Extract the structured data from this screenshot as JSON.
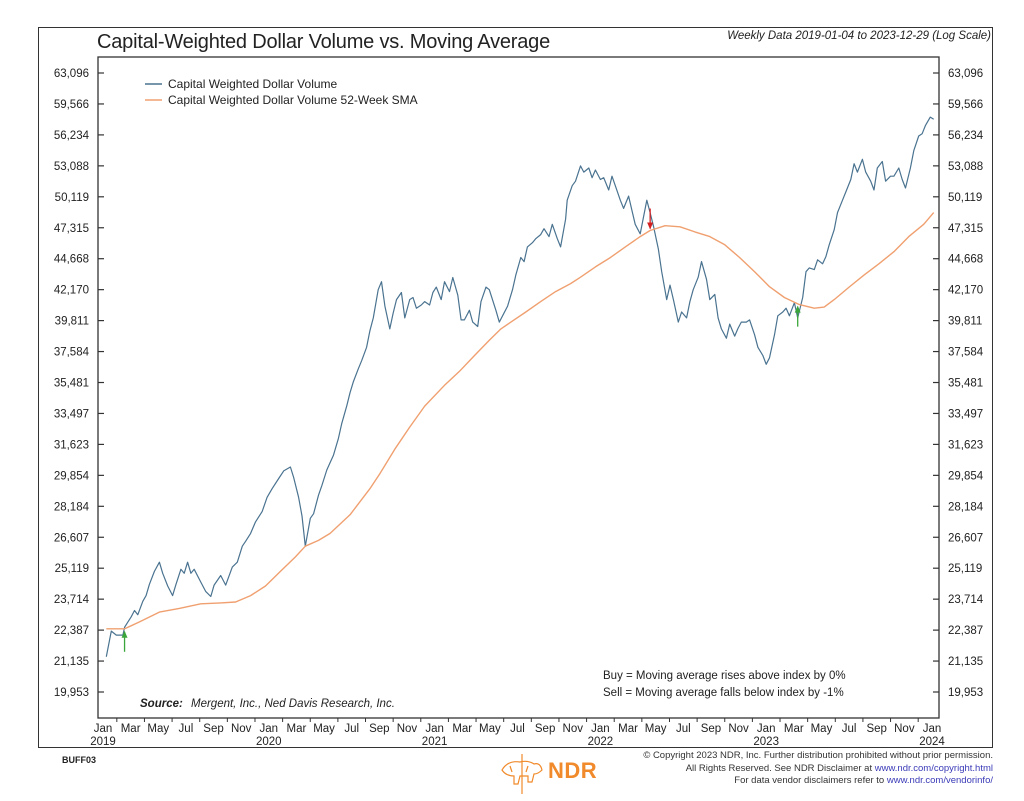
{
  "header": {
    "title": "Capital-Weighted Dollar Volume vs. Moving Average",
    "subtitle": "Weekly Data 2019-01-04 to 2023-12-29 (Log Scale)"
  },
  "footer": {
    "code": "BUFF03",
    "logo_text": "NDR",
    "copyright_line1": "© Copyright 2023 NDR, Inc. Further distribution prohibited without prior permission.",
    "copyright_line2_prefix": "All Rights Reserved. See NDR Disclaimer at ",
    "copyright_line2_link": "www.ndr.com/copyright.html",
    "copyright_line3_prefix": "For data vendor disclaimers refer to ",
    "copyright_line3_link": "www.ndr.com/vendorinfo/"
  },
  "colors": {
    "series_main": "#4a7390",
    "series_sma": "#f0a070",
    "buy_arrow": "#3aa53a",
    "sell_arrow": "#d42020",
    "logo": "#f08a2a"
  },
  "chart_data": {
    "type": "line",
    "title": "Capital-Weighted Dollar Volume vs. Moving Average",
    "subtitle": "Weekly Data 2019-01-04 to 2023-12-29 (Log Scale)",
    "y_scale": "log",
    "ylim": [
      19000,
      65500
    ],
    "xlim": [
      2018.98,
      2024.04
    ],
    "y_ticks": [
      63096,
      59566,
      56234,
      53088,
      50119,
      47315,
      44668,
      42170,
      39811,
      37584,
      35481,
      33497,
      31623,
      29854,
      28184,
      26607,
      25119,
      23714,
      22387,
      21135,
      19953
    ],
    "y_tick_labels": [
      "63,096",
      "59,566",
      "56,234",
      "53,088",
      "50,119",
      "47,315",
      "44,668",
      "42,170",
      "39,811",
      "37,584",
      "35,481",
      "33,497",
      "31,623",
      "29,854",
      "28,184",
      "26,607",
      "25,119",
      "23,714",
      "22,387",
      "21,135",
      "19,953"
    ],
    "x_month_labels": [
      "Jan",
      "Mar",
      "May",
      "Jul",
      "Sep",
      "Nov",
      "Jan",
      "Mar",
      "May",
      "Jul",
      "Sep",
      "Nov",
      "Jan",
      "Mar",
      "May",
      "Jul",
      "Sep",
      "Nov",
      "Jan",
      "Mar",
      "May",
      "Jul",
      "Sep",
      "Nov",
      "Jan",
      "Mar",
      "May",
      "Jul",
      "Sep",
      "Nov",
      "Jan"
    ],
    "x_year_labels": [
      {
        "label": "2019",
        "x": 2019.0
      },
      {
        "label": "2020",
        "x": 2020.0
      },
      {
        "label": "2021",
        "x": 2021.0
      },
      {
        "label": "2022",
        "x": 2022.0
      },
      {
        "label": "2023",
        "x": 2023.0
      },
      {
        "label": "2024",
        "x": 2024.0
      }
    ],
    "grid": false,
    "legend": {
      "position": "top-left",
      "entries": [
        {
          "name": "Capital Weighted Dollar Volume",
          "color": "#4a7390"
        },
        {
          "name": "Capital Weighted Dollar Volume 52-Week SMA",
          "color": "#f0a070"
        }
      ]
    },
    "source_label": "Source:",
    "source_text": "Mergent, Inc., Ned Davis Research, Inc.",
    "signal_rules": [
      "Buy = Moving average rises above index by 0%",
      "Sell = Moving average falls below index by -1%"
    ],
    "signals": [
      {
        "type": "buy",
        "x": 2019.13,
        "y": 22400
      },
      {
        "type": "sell",
        "x": 2022.3,
        "y": 47070
      },
      {
        "type": "buy",
        "x": 2023.19,
        "y": 41010
      }
    ],
    "series": [
      {
        "name": "Capital Weighted Dollar Volume",
        "x": [
          2019.02,
          2019.05,
          2019.08,
          2019.12,
          2019.13,
          2019.17,
          2019.19,
          2019.21,
          2019.24,
          2019.26,
          2019.28,
          2019.31,
          2019.34,
          2019.36,
          2019.39,
          2019.42,
          2019.44,
          2019.47,
          2019.49,
          2019.51,
          2019.53,
          2019.55,
          2019.59,
          2019.62,
          2019.65,
          2019.67,
          2019.71,
          2019.74,
          2019.78,
          2019.81,
          2019.84,
          2019.86,
          2019.89,
          2019.92,
          2019.96,
          2019.99,
          2020.02,
          2020.06,
          2020.09,
          2020.13,
          2020.15,
          2020.18,
          2020.2,
          2020.22,
          2020.25,
          2020.27,
          2020.3,
          2020.32,
          2020.35,
          2020.37,
          2020.39,
          2020.42,
          2020.44,
          2020.47,
          2020.49,
          2020.51,
          2020.54,
          2020.56,
          2020.59,
          2020.61,
          2020.63,
          2020.66,
          2020.68,
          2020.7,
          2020.73,
          2020.75,
          2020.77,
          2020.8,
          2020.82,
          2020.85,
          2020.87,
          2020.89,
          2020.92,
          2020.94,
          2020.97,
          2020.99,
          2021.01,
          2021.04,
          2021.06,
          2021.09,
          2021.11,
          2021.14,
          2021.16,
          2021.18,
          2021.21,
          2021.23,
          2021.26,
          2021.28,
          2021.31,
          2021.33,
          2021.37,
          2021.39,
          2021.42,
          2021.44,
          2021.47,
          2021.49,
          2021.52,
          2021.54,
          2021.56,
          2021.59,
          2021.61,
          2021.64,
          2021.66,
          2021.69,
          2021.71,
          2021.74,
          2021.76,
          2021.79,
          2021.8,
          2021.83,
          2021.85,
          2021.88,
          2021.9,
          2021.93,
          2021.95,
          2021.97,
          2022.0,
          2022.02,
          2022.05,
          2022.07,
          2022.09,
          2022.12,
          2022.14,
          2022.17,
          2022.19,
          2022.21,
          2022.24,
          2022.28,
          2022.3,
          2022.32,
          2022.35,
          2022.37,
          2022.4,
          2022.42,
          2022.44,
          2022.47,
          2022.49,
          2022.52,
          2022.54,
          2022.56,
          2022.59,
          2022.61,
          2022.64,
          2022.66,
          2022.69,
          2022.71,
          2022.73,
          2022.76,
          2022.78,
          2022.81,
          2022.83,
          2022.85,
          2022.88,
          2022.9,
          2022.93,
          2022.95,
          2022.98,
          2023.0,
          2023.02,
          2023.05,
          2023.07,
          2023.1,
          2023.12,
          2023.14,
          2023.17,
          2023.19,
          2023.22,
          2023.24,
          2023.26,
          2023.29,
          2023.31,
          2023.34,
          2023.36,
          2023.38,
          2023.41,
          2023.43,
          2023.46,
          2023.48,
          2023.51,
          2023.53,
          2023.55,
          2023.58,
          2023.6,
          2023.63,
          2023.65,
          2023.67,
          2023.7,
          2023.72,
          2023.75,
          2023.77,
          2023.8,
          2023.82,
          2023.84,
          2023.87,
          2023.89,
          2023.92,
          2023.94,
          2023.96,
          2023.99,
          2024.01
        ],
        "values": [
          21302,
          22345,
          22180,
          22180,
          22510,
          22950,
          23220,
          23040,
          23620,
          23870,
          24380,
          24970,
          25400,
          24880,
          24300,
          23870,
          24380,
          25070,
          24880,
          25400,
          24880,
          25070,
          24480,
          24050,
          23830,
          24340,
          24780,
          24340,
          25170,
          25400,
          26170,
          26410,
          26800,
          27380,
          27920,
          28660,
          29120,
          29680,
          30100,
          30320,
          29730,
          28660,
          27680,
          26170,
          27560,
          27800,
          28770,
          29300,
          30150,
          30570,
          31000,
          31980,
          32890,
          33960,
          34810,
          35540,
          36400,
          36940,
          37880,
          39060,
          40010,
          42170,
          42800,
          40900,
          39200,
          40350,
          41400,
          41950,
          40010,
          41400,
          41560,
          40740,
          40980,
          41240,
          40980,
          41950,
          42370,
          41400,
          42800,
          42020,
          43130,
          41740,
          39860,
          39860,
          40580,
          39700,
          39380,
          41240,
          42370,
          42170,
          40580,
          39700,
          40400,
          40900,
          42170,
          43330,
          44770,
          44430,
          45660,
          46020,
          46360,
          46720,
          47230,
          46540,
          47620,
          46360,
          45660,
          48070,
          49800,
          51160,
          51590,
          53088,
          52480,
          52880,
          51930,
          52680,
          51760,
          51930,
          50760,
          52080,
          51160,
          49800,
          49050,
          50180,
          48880,
          47620,
          46780,
          49800,
          48670,
          47440,
          45460,
          43600,
          41400,
          42530,
          41400,
          39700,
          40450,
          40010,
          41240,
          42170,
          43160,
          44430,
          42990,
          41400,
          41800,
          40010,
          39200,
          38530,
          39550,
          38680,
          39240,
          39700,
          39700,
          39860,
          38770,
          37880,
          37300,
          36700,
          37150,
          38770,
          40170,
          40450,
          40740,
          40170,
          41160,
          40010,
          41560,
          43600,
          43910,
          43770,
          44580,
          44250,
          44840,
          45840,
          47140,
          48670,
          49800,
          50570,
          51760,
          53300,
          52480,
          53740,
          52480,
          51590,
          50760,
          52880,
          53520,
          51590,
          52080,
          52080,
          52880,
          51760,
          50950,
          52880,
          54620,
          56120,
          56350,
          57220,
          58130,
          57900
        ]
      },
      {
        "name": "Capital Weighted Dollar Volume 52-Week SMA",
        "x": [
          2019.02,
          2019.13,
          2019.22,
          2019.34,
          2019.46,
          2019.59,
          2019.71,
          2019.8,
          2019.89,
          2019.98,
          2020.07,
          2020.16,
          2020.22,
          2020.3,
          2020.37,
          2020.49,
          2020.61,
          2020.67,
          2020.76,
          2020.85,
          2020.94,
          2021.06,
          2021.15,
          2021.24,
          2021.33,
          2021.4,
          2021.46,
          2021.55,
          2021.64,
          2021.73,
          2021.82,
          2021.88,
          2021.97,
          2022.06,
          2022.15,
          2022.24,
          2022.3,
          2022.39,
          2022.48,
          2022.57,
          2022.66,
          2022.75,
          2022.84,
          2022.93,
          2023.02,
          2023.11,
          2023.2,
          2023.29,
          2023.35,
          2023.41,
          2023.5,
          2023.59,
          2023.68,
          2023.77,
          2023.86,
          2023.95,
          2024.01
        ],
        "values": [
          22440,
          22440,
          22730,
          23150,
          23310,
          23510,
          23550,
          23590,
          23870,
          24300,
          24970,
          25650,
          26170,
          26450,
          26800,
          27740,
          29120,
          29950,
          31340,
          32660,
          33960,
          35300,
          36230,
          37300,
          38380,
          39200,
          39700,
          40450,
          41240,
          42020,
          42650,
          43160,
          43990,
          44760,
          45660,
          46540,
          47070,
          47500,
          47400,
          46950,
          46540,
          45840,
          44760,
          43600,
          42400,
          41560,
          41010,
          40740,
          40820,
          41400,
          42370,
          43330,
          44250,
          45250,
          46540,
          47620,
          48670
        ]
      }
    ]
  }
}
